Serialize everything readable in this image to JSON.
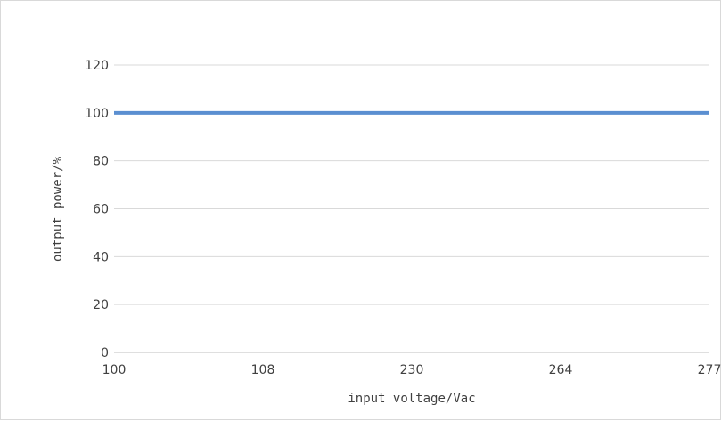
{
  "chart_data": {
    "type": "line",
    "xlabel": "input voltage/Vac",
    "ylabel": "output power/%",
    "categories": [
      "100",
      "108",
      "230",
      "264",
      "277"
    ],
    "series": [
      {
        "values": [
          100,
          100,
          100,
          100,
          100
        ]
      }
    ],
    "ylim": [
      0,
      120
    ],
    "yticks": [
      0,
      20,
      40,
      60,
      80,
      100,
      120
    ],
    "grid": "horizontal",
    "legend": "none",
    "colors": {
      "series": "#5b8fd1",
      "grid": "#d9d9d9",
      "axis": "#bfbfbf",
      "text": "#404040"
    }
  }
}
